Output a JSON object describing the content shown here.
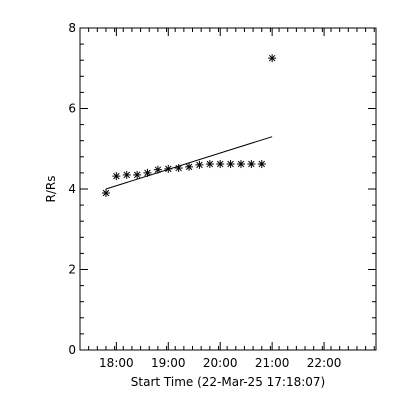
{
  "chart_data": {
    "type": "scatter",
    "title": "",
    "xlabel": "Start Time (22-Mar-25 17:18:07)",
    "ylabel": "R/Rs",
    "xlim": [
      "17:18",
      "23:00"
    ],
    "ylim": [
      0,
      8
    ],
    "x_ticks": [
      "18:00",
      "19:00",
      "20:00",
      "21:00",
      "22:00"
    ],
    "x_tick_minutes": [
      1080,
      1140,
      1200,
      1260,
      1320
    ],
    "y_ticks": [
      "0",
      "2",
      "4",
      "6",
      "8"
    ],
    "y_tick_values": [
      0,
      2,
      4,
      6,
      8
    ],
    "grid": false,
    "series": [
      {
        "marker": "asterisk",
        "x": [
          "17:48",
          "18:00",
          "18:12",
          "18:24",
          "18:36",
          "18:48",
          "19:00",
          "19:12",
          "19:24",
          "19:36",
          "19:48",
          "20:00",
          "20:12",
          "20:24",
          "20:36",
          "20:48",
          "21:00"
        ],
        "y": [
          3.9,
          4.32,
          4.35,
          4.35,
          4.4,
          4.48,
          4.5,
          4.52,
          4.55,
          4.6,
          4.62,
          4.62,
          4.62,
          4.62,
          4.62,
          4.62,
          7.25
        ]
      }
    ],
    "fit_line": {
      "x": [
        "17:48",
        "21:00"
      ],
      "y": [
        4.0,
        5.3
      ]
    }
  }
}
